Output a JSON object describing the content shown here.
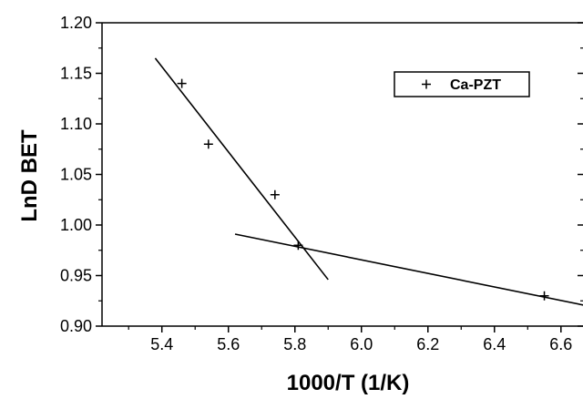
{
  "chart_data": {
    "type": "scatter",
    "title": "",
    "xlabel": "1000/T  (1/K)",
    "ylabel": "LnD BET",
    "xlim": [
      5.22,
      6.68
    ],
    "ylim": [
      0.9,
      1.2
    ],
    "xticks": [
      "5.4",
      "5.6",
      "5.8",
      "6.0",
      "6.2",
      "6.4",
      "6.6"
    ],
    "yticks": [
      "0.90",
      "0.95",
      "1.00",
      "1.05",
      "1.10",
      "1.15",
      "1.20"
    ],
    "grid": false,
    "legend_position": "top-right",
    "series": [
      {
        "name": "Ca-PZT",
        "marker": "+",
        "x": [
          5.46,
          5.54,
          5.74,
          5.81,
          6.55
        ],
        "y": [
          1.14,
          1.08,
          1.03,
          0.98,
          0.93
        ]
      }
    ],
    "fit_lines": [
      {
        "x": [
          5.38,
          5.9
        ],
        "y": [
          1.165,
          0.946
        ]
      },
      {
        "x": [
          5.62,
          6.68
        ],
        "y": [
          0.991,
          0.92
        ]
      }
    ],
    "colors": {
      "axis": "#000000",
      "marker": "#000000",
      "line": "#000000"
    }
  }
}
